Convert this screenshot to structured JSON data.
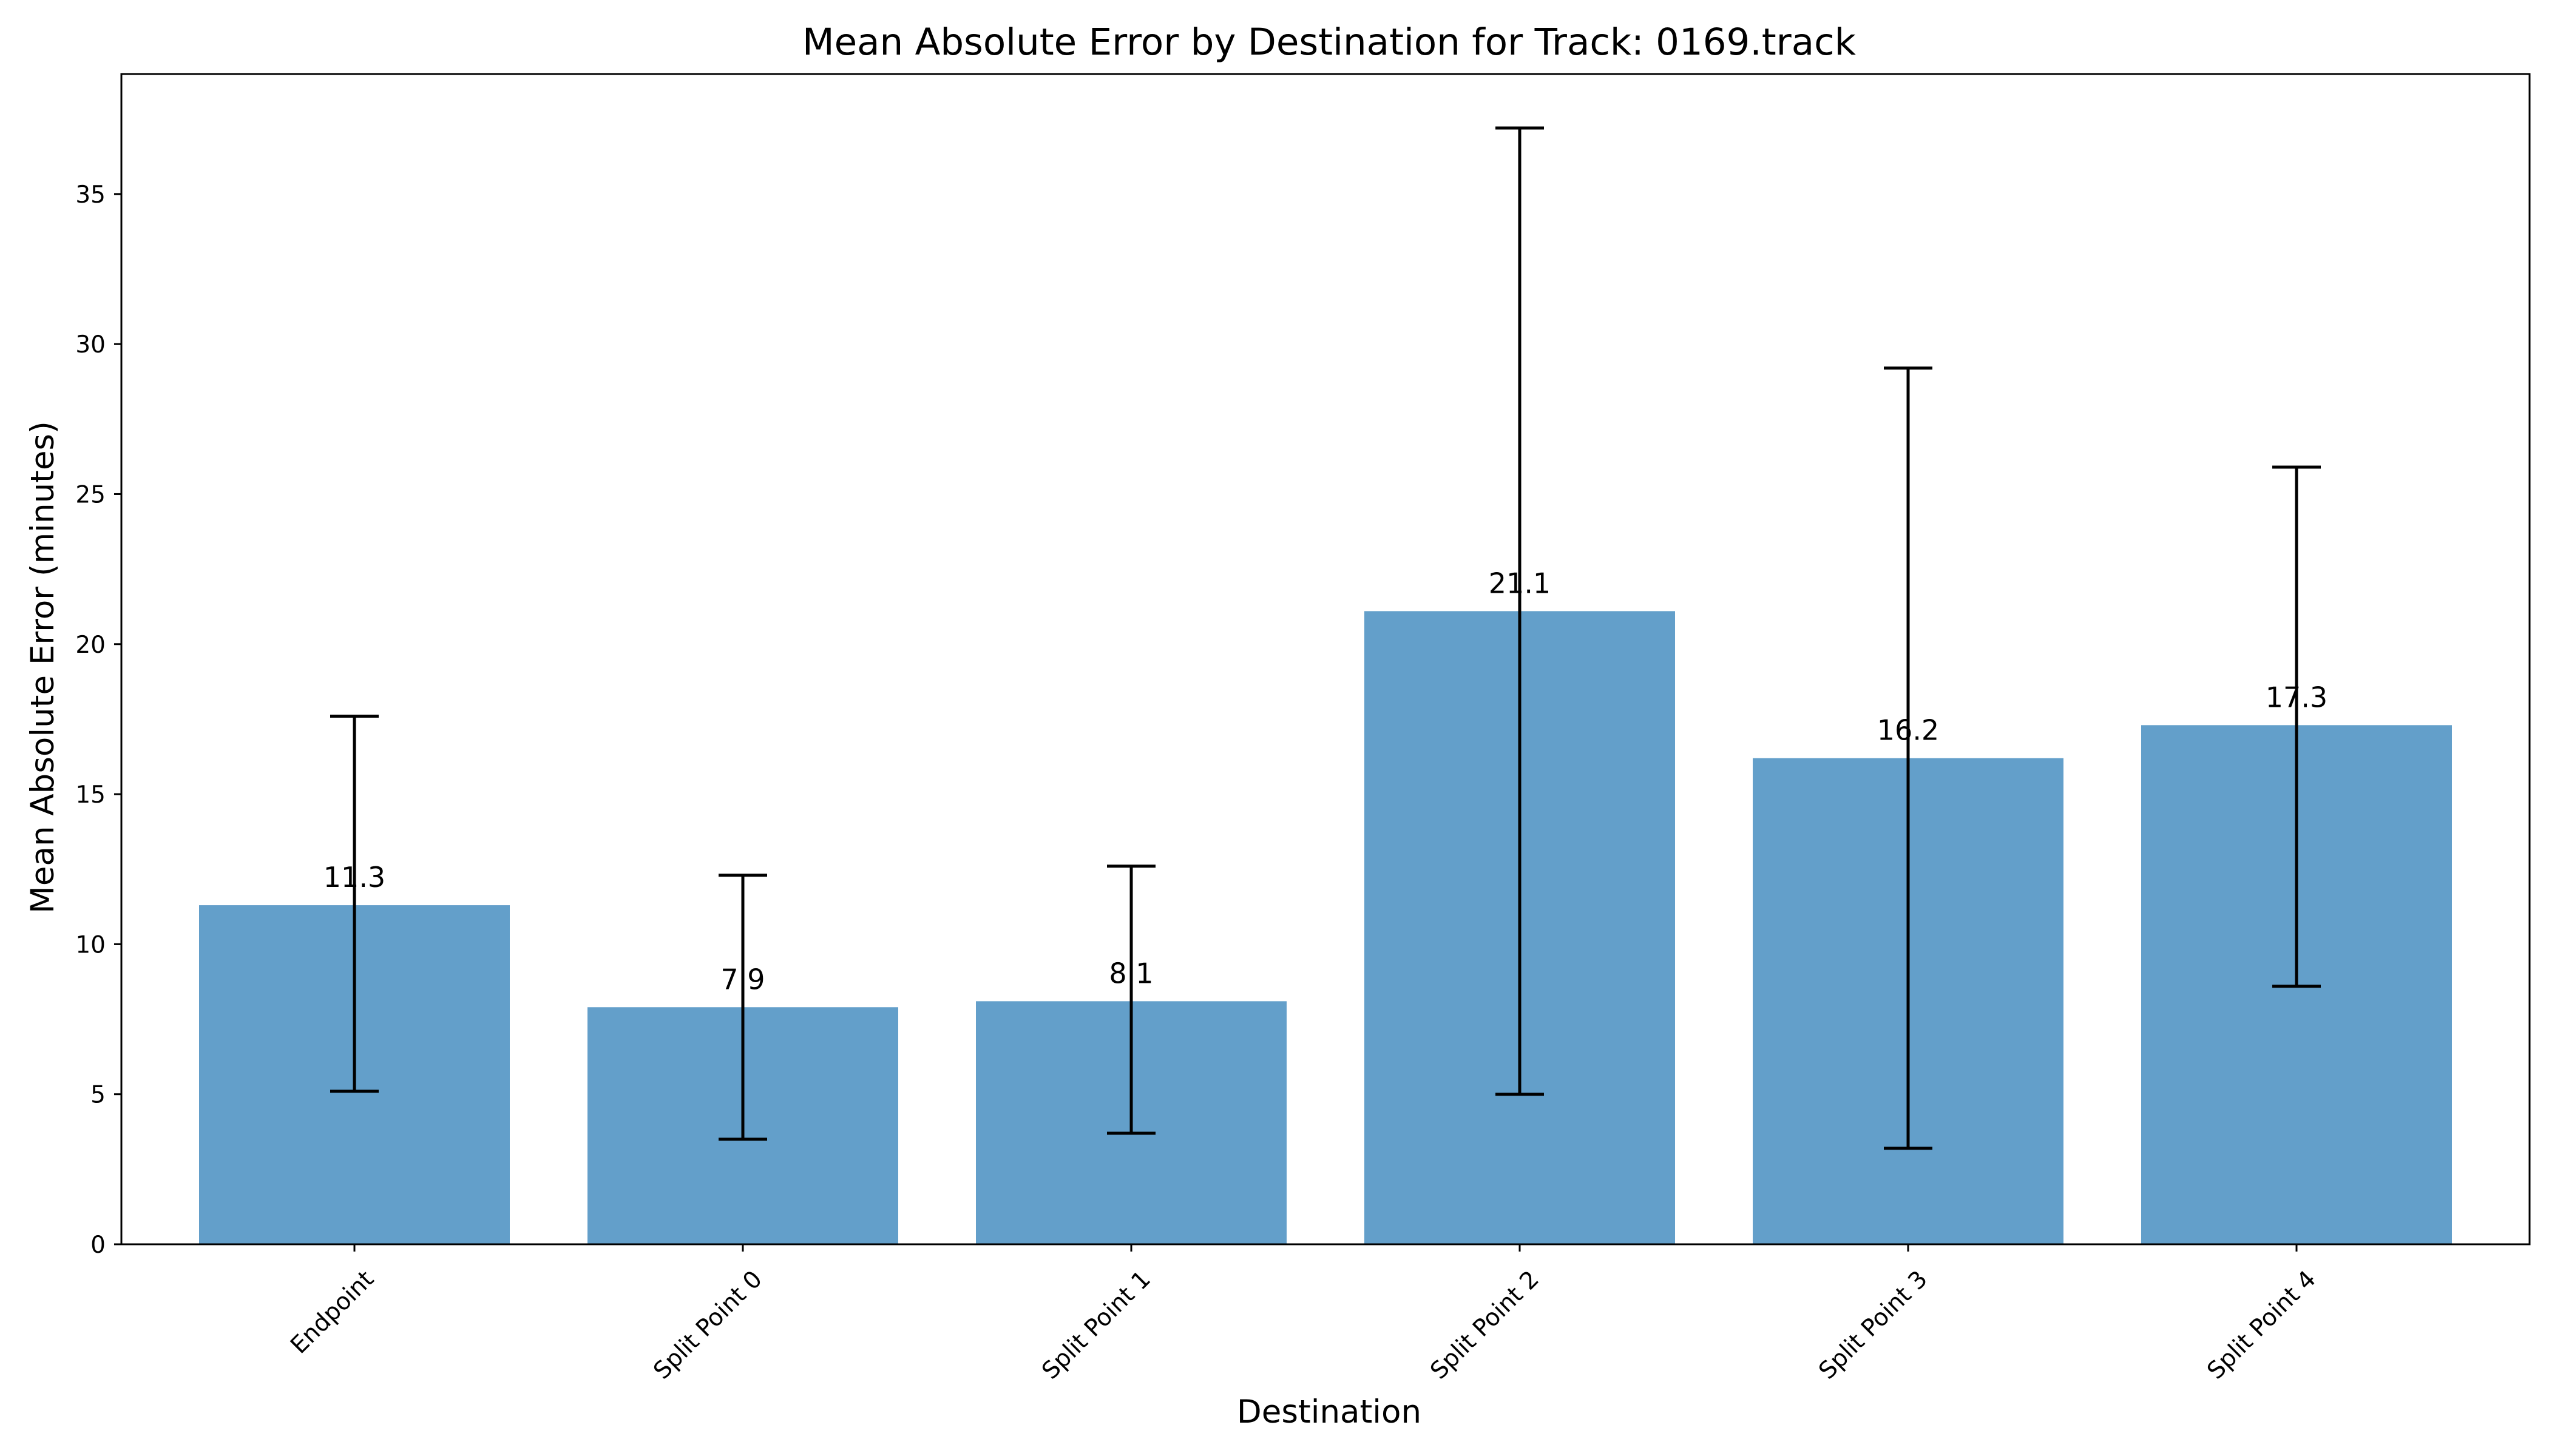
{
  "chart_data": {
    "type": "bar",
    "title": "Mean Absolute Error by Destination for Track: 0169.track",
    "xlabel": "Destination",
    "ylabel": "Mean Absolute Error (minutes)",
    "categories": [
      "Endpoint",
      "Split Point 0",
      "Split Point 1",
      "Split Point 2",
      "Split Point 3",
      "Split Point 4"
    ],
    "values": [
      11.3,
      7.9,
      8.1,
      21.1,
      16.2,
      17.3
    ],
    "value_labels": [
      "11.3",
      "7.9",
      "8.1",
      "21.1",
      "16.2",
      "17.3"
    ],
    "error_bars": [
      {
        "low": 5.1,
        "high": 17.6
      },
      {
        "low": 3.5,
        "high": 12.3
      },
      {
        "low": 3.7,
        "high": 12.6
      },
      {
        "low": 5.0,
        "high": 37.2
      },
      {
        "low": 3.2,
        "high": 29.2
      },
      {
        "low": 8.6,
        "high": 25.9
      }
    ],
    "ylim": [
      0,
      39
    ],
    "yticks": [
      0,
      5,
      10,
      15,
      20,
      25,
      30,
      35
    ],
    "grid": false,
    "bar_color": "#639fca",
    "error_color": "#000000"
  }
}
